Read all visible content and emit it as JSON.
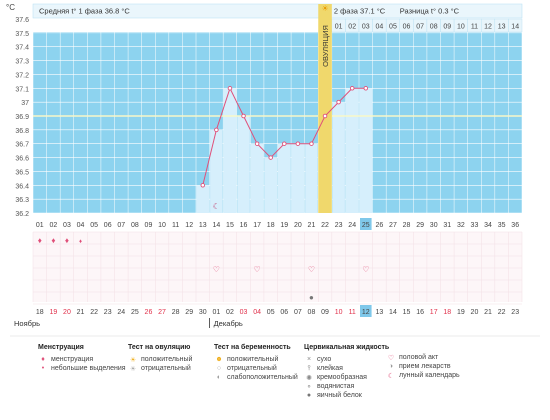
{
  "chart_data": {
    "type": "line",
    "ylabel": "°C",
    "ylim": [
      36.2,
      37.6
    ],
    "yticks": [
      "37.6",
      "37.5",
      "37.4",
      "37.3",
      "37.2",
      "37.1",
      "37",
      "36.9",
      "36.8",
      "36.7",
      "36.6",
      "36.5",
      "36.4",
      "36.3",
      "36.2"
    ],
    "phase1_label": "Средняя t° 1 фаза",
    "phase1_value": "36.8 °C",
    "phase2_label": "2 фаза",
    "phase2_value": "37.1 °C",
    "diff_label": "Разница t°",
    "diff_value": "0.3 °C",
    "ovulation_label": "ОВУЛЯЦИЯ",
    "ovulation_day": 22,
    "coverline": 36.9,
    "top_day_labels": [
      "",
      "",
      "",
      "",
      "",
      "",
      "",
      "",
      "",
      "",
      "",
      "",
      "",
      "",
      "",
      "",
      "",
      "",
      "",
      "",
      "",
      "",
      "01",
      "02",
      "03",
      "04",
      "05",
      "06",
      "07",
      "08",
      "09",
      "10",
      "11",
      "12",
      "13",
      "14"
    ],
    "cycle_days": [
      "01",
      "02",
      "03",
      "04",
      "05",
      "06",
      "07",
      "08",
      "09",
      "10",
      "11",
      "12",
      "13",
      "14",
      "15",
      "16",
      "17",
      "18",
      "19",
      "20",
      "21",
      "22",
      "23",
      "24",
      "25",
      "26",
      "27",
      "28",
      "29",
      "30",
      "31",
      "32",
      "33",
      "34",
      "35",
      "36"
    ],
    "current_cycle_day": "25",
    "series": [
      {
        "x": [
          13,
          14,
          15,
          16,
          17,
          18,
          19,
          20,
          21,
          22,
          23,
          24,
          25
        ],
        "values": [
          36.4,
          36.8,
          37.1,
          36.9,
          36.7,
          36.6,
          36.7,
          36.7,
          36.7,
          36.9,
          37.0,
          37.1,
          37.1
        ]
      }
    ],
    "dates": [
      "18",
      "19",
      "20",
      "21",
      "22",
      "23",
      "24",
      "25",
      "26",
      "27",
      "28",
      "29",
      "30",
      "01",
      "02",
      "03",
      "04",
      "05",
      "06",
      "07",
      "08",
      "09",
      "10",
      "11",
      "12",
      "13",
      "14",
      "15",
      "16",
      "17",
      "18",
      "19",
      "20",
      "21",
      "22",
      "23"
    ],
    "red_date_indexes": [
      1,
      2,
      8,
      9,
      15,
      16,
      22,
      23,
      29,
      30
    ],
    "current_date": "12",
    "month1": "Ноябрь",
    "month2": "Декабрь",
    "menstruation_days": [
      1,
      2,
      3,
      4
    ],
    "intercourse_days": [
      14,
      17,
      21,
      25
    ],
    "mucus_days": [
      21
    ],
    "moon_day": 14
  },
  "legend": {
    "menstr_title": "Менструация",
    "menstr_1": "менструация",
    "menstr_2": "небольшие выделения",
    "ovtest_title": "Тест на овуляцию",
    "ovtest_1": "положительный",
    "ovtest_2": "отрицательный",
    "preg_title": "Тест на беременность",
    "preg_1": "положительный",
    "preg_2": "отрицательный",
    "preg_3": "слабоположительный",
    "cerv_title": "Цервикальная жидкость",
    "cerv_1": "сухо",
    "cerv_2": "клейкая",
    "cerv_3": "кремообразная",
    "cerv_4": "водянистая",
    "cerv_5": "яичный белок",
    "other_1": "половой акт",
    "other_2": "прием лекарств",
    "other_3": "лунный календарь"
  },
  "colors": {
    "bg_blue": "#8dd3ef",
    "bar_fill": "#d6effc",
    "line": "#e0507a",
    "coverline": "#f8f8c8",
    "ovulation": "#f0d86c",
    "highlight": "#7fc8ea"
  }
}
